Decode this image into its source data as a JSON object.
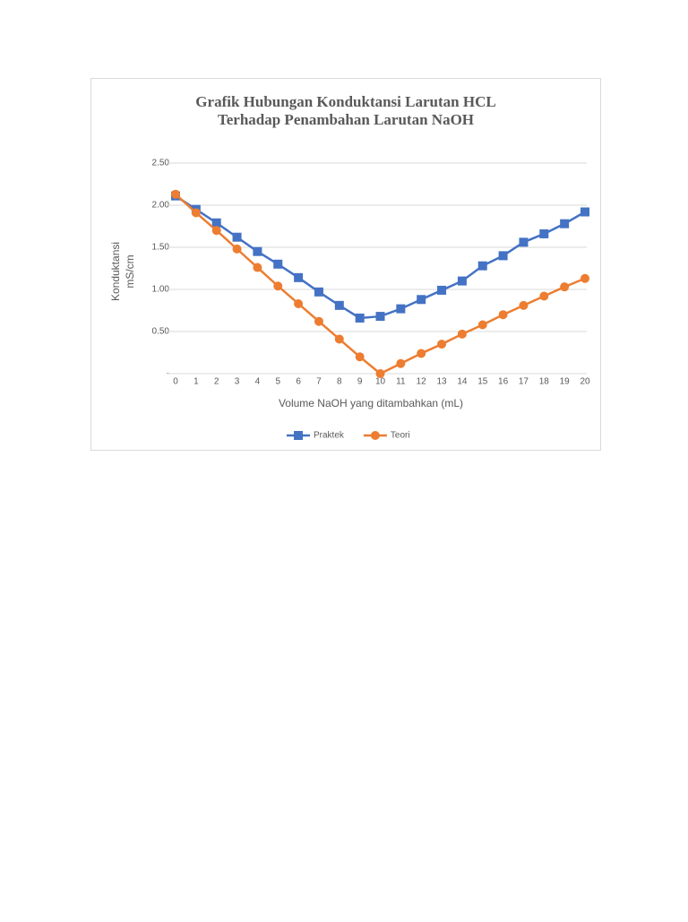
{
  "chart_data": {
    "type": "line",
    "title": [
      "Grafik Hubungan Konduktansi Larutan HCL",
      "Terhadap Penambahan Larutan NaOH"
    ],
    "x_label": "Volume NaOH yang ditambahkan (mL)",
    "y_label": [
      "Konduktansi",
      "mS/cm"
    ],
    "x": [
      0,
      1,
      2,
      3,
      4,
      5,
      6,
      7,
      8,
      9,
      10,
      11,
      12,
      13,
      14,
      15,
      16,
      17,
      18,
      19,
      20
    ],
    "xlim": [
      0,
      20
    ],
    "xticks": [
      0,
      1,
      2,
      3,
      4,
      5,
      6,
      7,
      8,
      9,
      10,
      11,
      12,
      13,
      14,
      15,
      16,
      17,
      18,
      19,
      20
    ],
    "ylim": [
      0,
      2.5
    ],
    "yticks": [
      {
        "value": 0,
        "label": "-"
      },
      {
        "value": 0.5,
        "label": "0.50"
      },
      {
        "value": 1,
        "label": "1.00"
      },
      {
        "value": 1.5,
        "label": "1.50"
      },
      {
        "value": 2,
        "label": "2.00"
      },
      {
        "value": 2.5,
        "label": "2.50"
      }
    ],
    "grid": true,
    "legend": "bottom",
    "series": [
      {
        "name": "Praktek",
        "color": "#4472c4",
        "marker": "square",
        "values": [
          2.11,
          1.95,
          1.79,
          1.62,
          1.45,
          1.3,
          1.14,
          0.97,
          0.81,
          0.66,
          0.68,
          0.77,
          0.88,
          0.99,
          1.1,
          1.28,
          1.4,
          1.56,
          1.66,
          1.78,
          1.92
        ]
      },
      {
        "name": "Teori",
        "color": "#ed7d31",
        "marker": "circle",
        "values": [
          2.13,
          1.91,
          1.7,
          1.48,
          1.26,
          1.04,
          0.83,
          0.62,
          0.41,
          0.2,
          0,
          0.12,
          0.24,
          0.35,
          0.47,
          0.58,
          0.7,
          0.81,
          0.92,
          1.03,
          1.13
        ]
      }
    ]
  }
}
